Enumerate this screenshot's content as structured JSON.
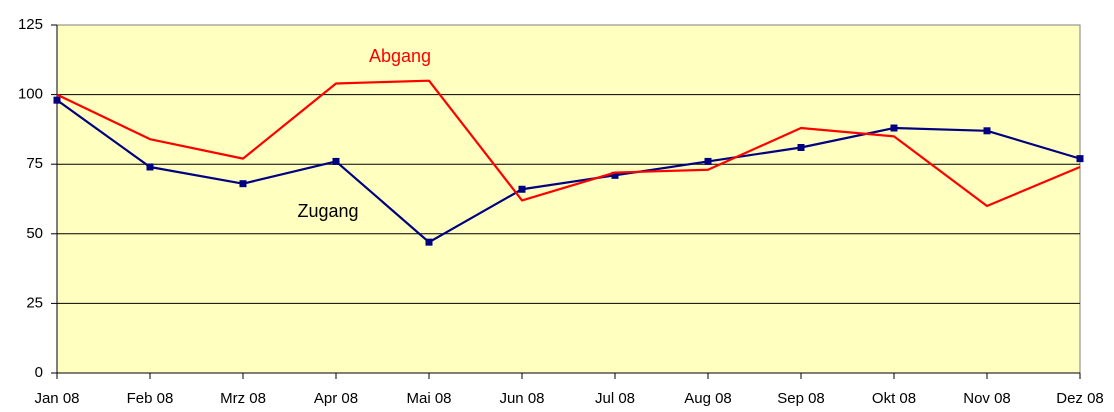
{
  "chart_data": {
    "type": "line",
    "categories": [
      "Jan 08",
      "Feb 08",
      "Mrz 08",
      "Apr 08",
      "Mai 08",
      "Jun 08",
      "Jul 08",
      "Aug 08",
      "Sep 08",
      "Okt 08",
      "Nov 08",
      "Dez 08"
    ],
    "series": [
      {
        "name": "Zugang",
        "color": "#000080",
        "marker": "square",
        "values": [
          98,
          74,
          68,
          76,
          47,
          66,
          71,
          76,
          81,
          88,
          87,
          77
        ]
      },
      {
        "name": "Abgang",
        "color": "#ff0000",
        "values": [
          100,
          84,
          77,
          104,
          105,
          62,
          72,
          73,
          88,
          85,
          60,
          74
        ]
      }
    ],
    "ylim": [
      0,
      125
    ],
    "yticks": [
      0,
      25,
      50,
      75,
      100,
      125
    ],
    "grid": true,
    "background": "#ffffc0"
  }
}
